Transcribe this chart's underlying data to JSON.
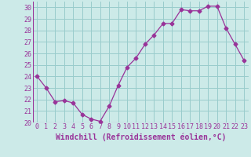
{
  "x": [
    0,
    1,
    2,
    3,
    4,
    5,
    6,
    7,
    8,
    9,
    10,
    11,
    12,
    13,
    14,
    15,
    16,
    17,
    18,
    19,
    20,
    21,
    22,
    23
  ],
  "y": [
    24.0,
    23.0,
    21.8,
    21.9,
    21.7,
    20.7,
    20.3,
    20.1,
    21.4,
    23.2,
    24.8,
    25.6,
    26.8,
    27.6,
    28.6,
    28.6,
    29.8,
    29.7,
    29.7,
    30.1,
    30.1,
    28.2,
    26.8,
    25.4
  ],
  "line_color": "#993399",
  "marker": "D",
  "marker_size": 2.5,
  "xlabel": "Windchill (Refroidissement éolien,°C)",
  "xlim": [
    -0.5,
    23.5
  ],
  "ylim": [
    20,
    30.5
  ],
  "yticks": [
    20,
    21,
    22,
    23,
    24,
    25,
    26,
    27,
    28,
    29,
    30
  ],
  "xtick_labels": [
    "0",
    "1",
    "2",
    "3",
    "4",
    "5",
    "6",
    "7",
    "8",
    "9",
    "10",
    "11",
    "12",
    "13",
    "14",
    "15",
    "16",
    "17",
    "18",
    "19",
    "20",
    "21",
    "22",
    "23"
  ],
  "bg_color": "#cceae8",
  "grid_color": "#99cccc",
  "font_color": "#993399",
  "tick_font_size": 6,
  "xlabel_font_size": 7
}
